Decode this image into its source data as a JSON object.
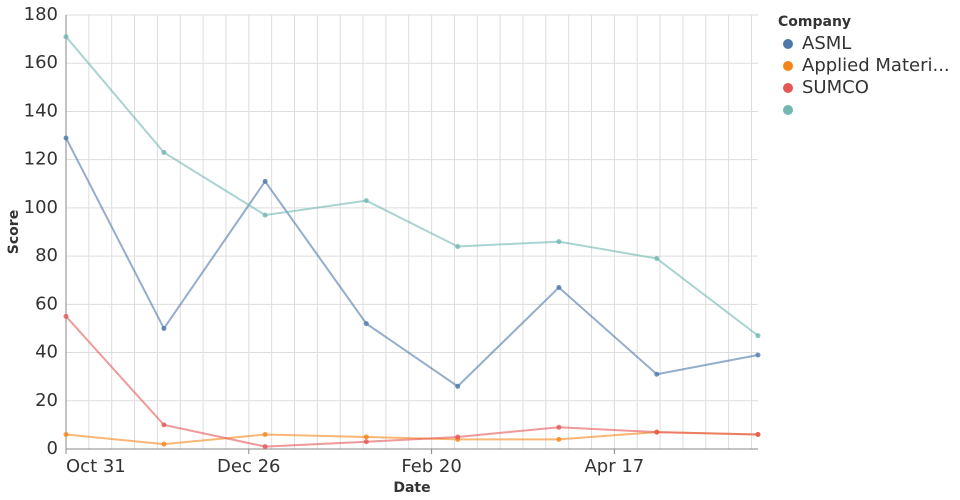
{
  "chart_data": {
    "type": "line",
    "x_label": "Date",
    "y_label": "Score",
    "legend_title": "Company",
    "x": [
      "Oct 31",
      "Nov 30",
      "Dec 31",
      "Jan 31",
      "Feb 28",
      "Mar 31",
      "Apr 30",
      "May 31"
    ],
    "xlim": [
      "Oct 31",
      "May 31"
    ],
    "xticks": [
      "Oct 31",
      "Dec 26",
      "Feb 20",
      "Apr 17"
    ],
    "ylim": [
      0,
      180
    ],
    "yticks": [
      0,
      20,
      40,
      60,
      80,
      100,
      120,
      140,
      160,
      180
    ],
    "grid": true,
    "legend": "right",
    "series": [
      {
        "name": "ASML",
        "color": "#4c78a8",
        "values": [
          129,
          50,
          111,
          52,
          26,
          67,
          31,
          39
        ]
      },
      {
        "name": "Applied Materi...",
        "color": "#f58518",
        "values": [
          6,
          2,
          6,
          5,
          4,
          4,
          7,
          6
        ]
      },
      {
        "name": "SUMCO",
        "color": "#e45756",
        "values": [
          55,
          10,
          1,
          3,
          5,
          9,
          7,
          6
        ]
      },
      {
        "name": null,
        "color": "#72b7b2",
        "values": [
          171,
          123,
          97,
          103,
          84,
          86,
          79,
          47
        ]
      }
    ]
  }
}
